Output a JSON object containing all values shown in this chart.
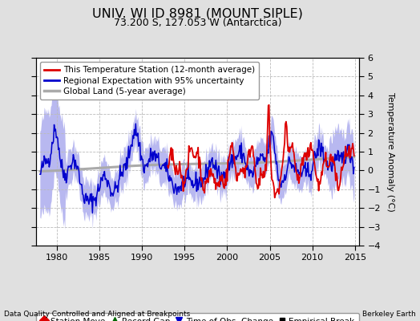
{
  "title": "UNIV. WI ID 8981 (MOUNT SIPLE)",
  "subtitle": "73.200 S, 127.053 W (Antarctica)",
  "ylabel": "Temperature Anomaly (°C)",
  "bottom_left": "Data Quality Controlled and Aligned at Breakpoints",
  "bottom_right": "Berkeley Earth",
  "xlim": [
    1977.5,
    2015.5
  ],
  "ylim": [
    -4,
    6
  ],
  "yticks": [
    -4,
    -3,
    -2,
    -1,
    0,
    1,
    2,
    3,
    4,
    5,
    6
  ],
  "xticks": [
    1980,
    1985,
    1990,
    1995,
    2000,
    2005,
    2010,
    2015
  ],
  "background_color": "#e0e0e0",
  "plot_bg_color": "#ffffff",
  "grid_color": "#bbbbbb",
  "regional_fill_color": "#b8b8f0",
  "regional_line_color": "#0000cc",
  "station_line_color": "#dd0000",
  "global_line_color": "#aaaaaa",
  "title_fontsize": 11.5,
  "subtitle_fontsize": 9,
  "legend_fontsize": 7.5,
  "tick_fontsize": 8,
  "label_fontsize": 8
}
